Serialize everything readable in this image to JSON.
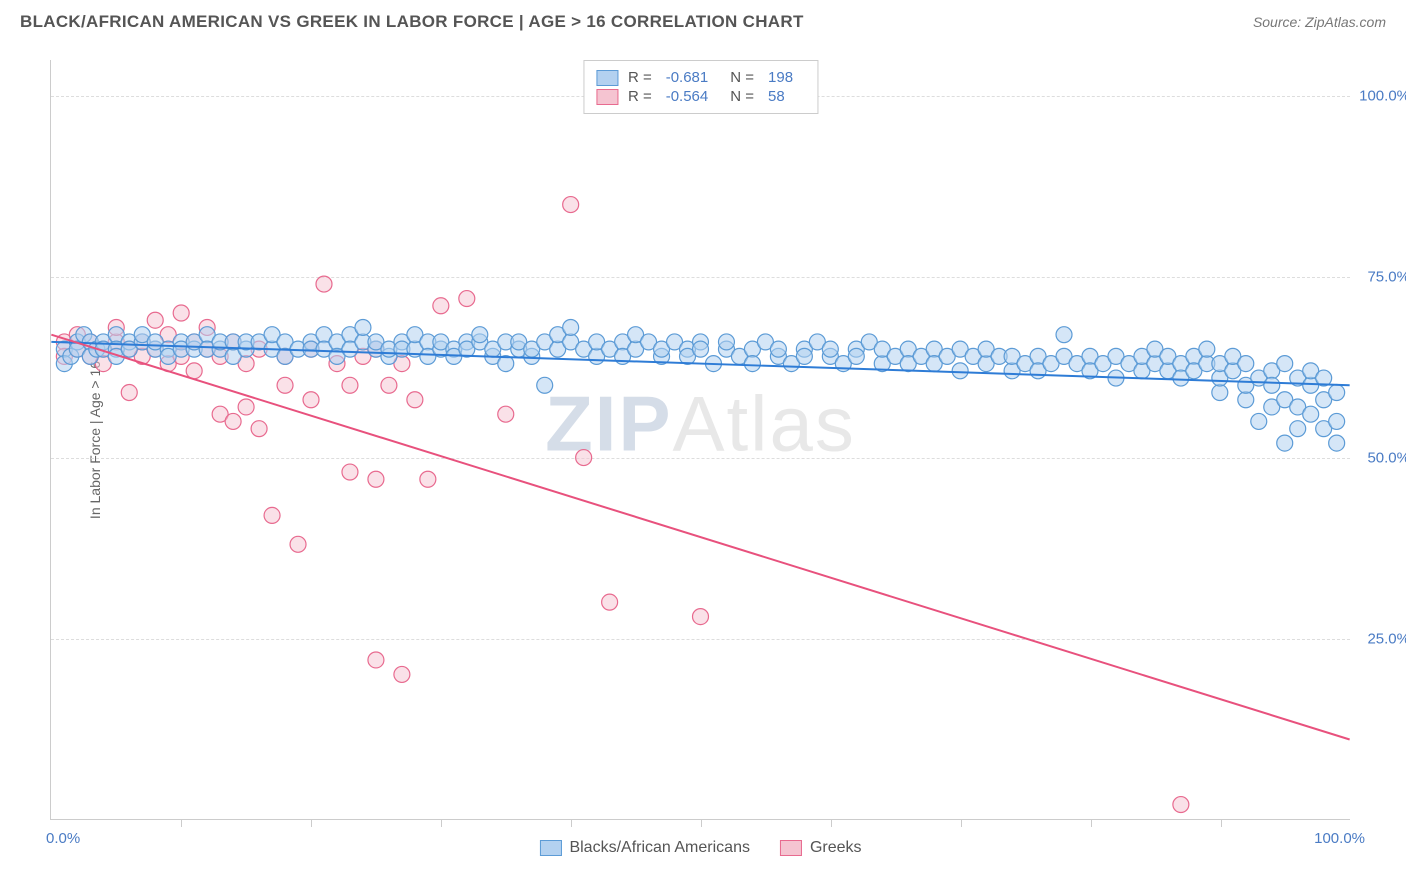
{
  "title": "BLACK/AFRICAN AMERICAN VS GREEK IN LABOR FORCE | AGE > 16 CORRELATION CHART",
  "source": "Source: ZipAtlas.com",
  "watermark_bold": "ZIP",
  "watermark_light": "Atlas",
  "y_axis_label": "In Labor Force | Age > 16",
  "chart": {
    "type": "scatter",
    "xlim": [
      0,
      100
    ],
    "ylim": [
      0,
      105
    ],
    "x_tick_labels": {
      "min": "0.0%",
      "max": "100.0%"
    },
    "x_minor_ticks": [
      10,
      20,
      30,
      40,
      50,
      60,
      70,
      80,
      90
    ],
    "y_ticks": [
      {
        "value": 25,
        "label": "25.0%"
      },
      {
        "value": 50,
        "label": "50.0%"
      },
      {
        "value": 75,
        "label": "75.0%"
      },
      {
        "value": 100,
        "label": "100.0%"
      }
    ],
    "grid_color": "#dddddd",
    "background_color": "#ffffff",
    "series": [
      {
        "name": "Blacks/African Americans",
        "color_fill": "#b3d1f0",
        "color_stroke": "#5c9bd6",
        "marker_radius": 8,
        "fill_opacity": 0.55,
        "trend_line": {
          "x1": 0,
          "y1": 66,
          "x2": 100,
          "y2": 60,
          "color": "#2e7cd6",
          "width": 2
        },
        "r_value": "-0.681",
        "n_value": "198",
        "points": [
          [
            1,
            65
          ],
          [
            1,
            63
          ],
          [
            1.5,
            64
          ],
          [
            2,
            66
          ],
          [
            2,
            65
          ],
          [
            2.5,
            67
          ],
          [
            3,
            66
          ],
          [
            3,
            64
          ],
          [
            3.5,
            65
          ],
          [
            4,
            66
          ],
          [
            4,
            65
          ],
          [
            5,
            67
          ],
          [
            5,
            65
          ],
          [
            5,
            64
          ],
          [
            6,
            66
          ],
          [
            6,
            65
          ],
          [
            7,
            66
          ],
          [
            7,
            67
          ],
          [
            8,
            65
          ],
          [
            8,
            66
          ],
          [
            9,
            65
          ],
          [
            9,
            64
          ],
          [
            10,
            66
          ],
          [
            10,
            65
          ],
          [
            11,
            65
          ],
          [
            11,
            66
          ],
          [
            12,
            67
          ],
          [
            12,
            65
          ],
          [
            13,
            65
          ],
          [
            13,
            66
          ],
          [
            14,
            64
          ],
          [
            14,
            66
          ],
          [
            15,
            65
          ],
          [
            15,
            66
          ],
          [
            16,
            66
          ],
          [
            17,
            65
          ],
          [
            17,
            67
          ],
          [
            18,
            66
          ],
          [
            18,
            64
          ],
          [
            19,
            65
          ],
          [
            20,
            66
          ],
          [
            20,
            65
          ],
          [
            21,
            67
          ],
          [
            21,
            65
          ],
          [
            22,
            66
          ],
          [
            22,
            64
          ],
          [
            23,
            67
          ],
          [
            23,
            65
          ],
          [
            24,
            66
          ],
          [
            24,
            68
          ],
          [
            25,
            65
          ],
          [
            25,
            66
          ],
          [
            26,
            64
          ],
          [
            26,
            65
          ],
          [
            27,
            66
          ],
          [
            27,
            65
          ],
          [
            28,
            65
          ],
          [
            28,
            67
          ],
          [
            29,
            66
          ],
          [
            29,
            64
          ],
          [
            30,
            65
          ],
          [
            30,
            66
          ],
          [
            31,
            65
          ],
          [
            31,
            64
          ],
          [
            32,
            66
          ],
          [
            32,
            65
          ],
          [
            33,
            66
          ],
          [
            33,
            67
          ],
          [
            34,
            64
          ],
          [
            34,
            65
          ],
          [
            35,
            66
          ],
          [
            35,
            63
          ],
          [
            36,
            65
          ],
          [
            36,
            66
          ],
          [
            37,
            64
          ],
          [
            37,
            65
          ],
          [
            38,
            66
          ],
          [
            38,
            60
          ],
          [
            39,
            65
          ],
          [
            39,
            67
          ],
          [
            40,
            66
          ],
          [
            40,
            68
          ],
          [
            41,
            65
          ],
          [
            42,
            64
          ],
          [
            42,
            66
          ],
          [
            43,
            65
          ],
          [
            44,
            66
          ],
          [
            44,
            64
          ],
          [
            45,
            65
          ],
          [
            45,
            67
          ],
          [
            46,
            66
          ],
          [
            47,
            64
          ],
          [
            47,
            65
          ],
          [
            48,
            66
          ],
          [
            49,
            65
          ],
          [
            49,
            64
          ],
          [
            50,
            66
          ],
          [
            50,
            65
          ],
          [
            51,
            63
          ],
          [
            52,
            65
          ],
          [
            52,
            66
          ],
          [
            53,
            64
          ],
          [
            54,
            65
          ],
          [
            54,
            63
          ],
          [
            55,
            66
          ],
          [
            56,
            64
          ],
          [
            56,
            65
          ],
          [
            57,
            63
          ],
          [
            58,
            65
          ],
          [
            58,
            64
          ],
          [
            59,
            66
          ],
          [
            60,
            64
          ],
          [
            60,
            65
          ],
          [
            61,
            63
          ],
          [
            62,
            65
          ],
          [
            62,
            64
          ],
          [
            63,
            66
          ],
          [
            64,
            63
          ],
          [
            64,
            65
          ],
          [
            65,
            64
          ],
          [
            66,
            65
          ],
          [
            66,
            63
          ],
          [
            67,
            64
          ],
          [
            68,
            65
          ],
          [
            68,
            63
          ],
          [
            69,
            64
          ],
          [
            70,
            65
          ],
          [
            70,
            62
          ],
          [
            71,
            64
          ],
          [
            72,
            63
          ],
          [
            72,
            65
          ],
          [
            73,
            64
          ],
          [
            74,
            62
          ],
          [
            74,
            64
          ],
          [
            75,
            63
          ],
          [
            76,
            64
          ],
          [
            76,
            62
          ],
          [
            77,
            63
          ],
          [
            78,
            64
          ],
          [
            78,
            67
          ],
          [
            79,
            63
          ],
          [
            80,
            64
          ],
          [
            80,
            62
          ],
          [
            81,
            63
          ],
          [
            82,
            64
          ],
          [
            82,
            61
          ],
          [
            83,
            63
          ],
          [
            84,
            62
          ],
          [
            84,
            64
          ],
          [
            85,
            63
          ],
          [
            85,
            65
          ],
          [
            86,
            62
          ],
          [
            86,
            64
          ],
          [
            87,
            63
          ],
          [
            87,
            61
          ],
          [
            88,
            64
          ],
          [
            88,
            62
          ],
          [
            89,
            63
          ],
          [
            89,
            65
          ],
          [
            90,
            59
          ],
          [
            90,
            61
          ],
          [
            90,
            63
          ],
          [
            91,
            62
          ],
          [
            91,
            64
          ],
          [
            92,
            58
          ],
          [
            92,
            60
          ],
          [
            92,
            63
          ],
          [
            93,
            61
          ],
          [
            93,
            55
          ],
          [
            94,
            62
          ],
          [
            94,
            57
          ],
          [
            94,
            60
          ],
          [
            95,
            63
          ],
          [
            95,
            52
          ],
          [
            95,
            58
          ],
          [
            96,
            61
          ],
          [
            96,
            54
          ],
          [
            96,
            57
          ],
          [
            97,
            60
          ],
          [
            97,
            56
          ],
          [
            97,
            62
          ],
          [
            98,
            58
          ],
          [
            98,
            54
          ],
          [
            98,
            61
          ],
          [
            99,
            55
          ],
          [
            99,
            59
          ],
          [
            99,
            52
          ]
        ]
      },
      {
        "name": "Greeks",
        "color_fill": "#f5c4d1",
        "color_stroke": "#e86a8f",
        "marker_radius": 8,
        "fill_opacity": 0.5,
        "trend_line": {
          "x1": 0,
          "y1": 67,
          "x2": 100,
          "y2": 11,
          "color": "#e8517d",
          "width": 2
        },
        "r_value": "-0.564",
        "n_value": "58",
        "points": [
          [
            1,
            66
          ],
          [
            1,
            64
          ],
          [
            2,
            65
          ],
          [
            2,
            67
          ],
          [
            3,
            64
          ],
          [
            3,
            66
          ],
          [
            4,
            65
          ],
          [
            4,
            63
          ],
          [
            5,
            66
          ],
          [
            5,
            68
          ],
          [
            6,
            65
          ],
          [
            6,
            59
          ],
          [
            7,
            66
          ],
          [
            7,
            64
          ],
          [
            8,
            69
          ],
          [
            8,
            65
          ],
          [
            9,
            67
          ],
          [
            9,
            63
          ],
          [
            10,
            70
          ],
          [
            10,
            64
          ],
          [
            11,
            66
          ],
          [
            11,
            62
          ],
          [
            12,
            65
          ],
          [
            12,
            68
          ],
          [
            13,
            56
          ],
          [
            13,
            64
          ],
          [
            14,
            55
          ],
          [
            14,
            66
          ],
          [
            15,
            57
          ],
          [
            15,
            63
          ],
          [
            16,
            54
          ],
          [
            16,
            65
          ],
          [
            17,
            42
          ],
          [
            18,
            64
          ],
          [
            18,
            60
          ],
          [
            19,
            38
          ],
          [
            20,
            65
          ],
          [
            20,
            58
          ],
          [
            21,
            74
          ],
          [
            22,
            63
          ],
          [
            23,
            48
          ],
          [
            23,
            60
          ],
          [
            24,
            64
          ],
          [
            25,
            47
          ],
          [
            25,
            65
          ],
          [
            25,
            22
          ],
          [
            26,
            60
          ],
          [
            27,
            63
          ],
          [
            27,
            20
          ],
          [
            28,
            58
          ],
          [
            29,
            47
          ],
          [
            30,
            71
          ],
          [
            32,
            72
          ],
          [
            35,
            56
          ],
          [
            40,
            85
          ],
          [
            41,
            50
          ],
          [
            43,
            30
          ],
          [
            50,
            28
          ],
          [
            87,
            2
          ]
        ]
      }
    ]
  },
  "legend_top": {
    "r_label": "R =",
    "n_label": "N ="
  },
  "legend_bottom_pos_bottom": -38
}
